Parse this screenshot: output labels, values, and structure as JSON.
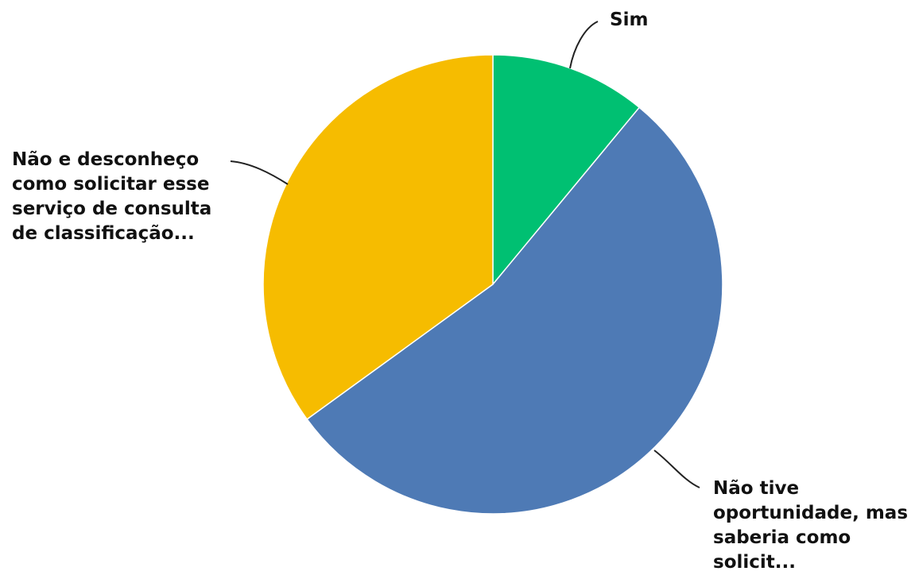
{
  "chart_data": {
    "type": "pie",
    "slices": [
      {
        "label": "Sim",
        "value": 11,
        "color": "#00c072"
      },
      {
        "label": "Não tive\noportunidade, mas\nsaberia como\nsolicit...",
        "value": 54,
        "color": "#4e7ab5"
      },
      {
        "label": "Não e desconheço\ncomo solicitar esse\nserviço de consulta\nde classificação...",
        "value": 35,
        "color": "#f6bc00"
      }
    ],
    "start_angle": "12 o'clock",
    "direction": "clockwise",
    "legend": "none"
  }
}
